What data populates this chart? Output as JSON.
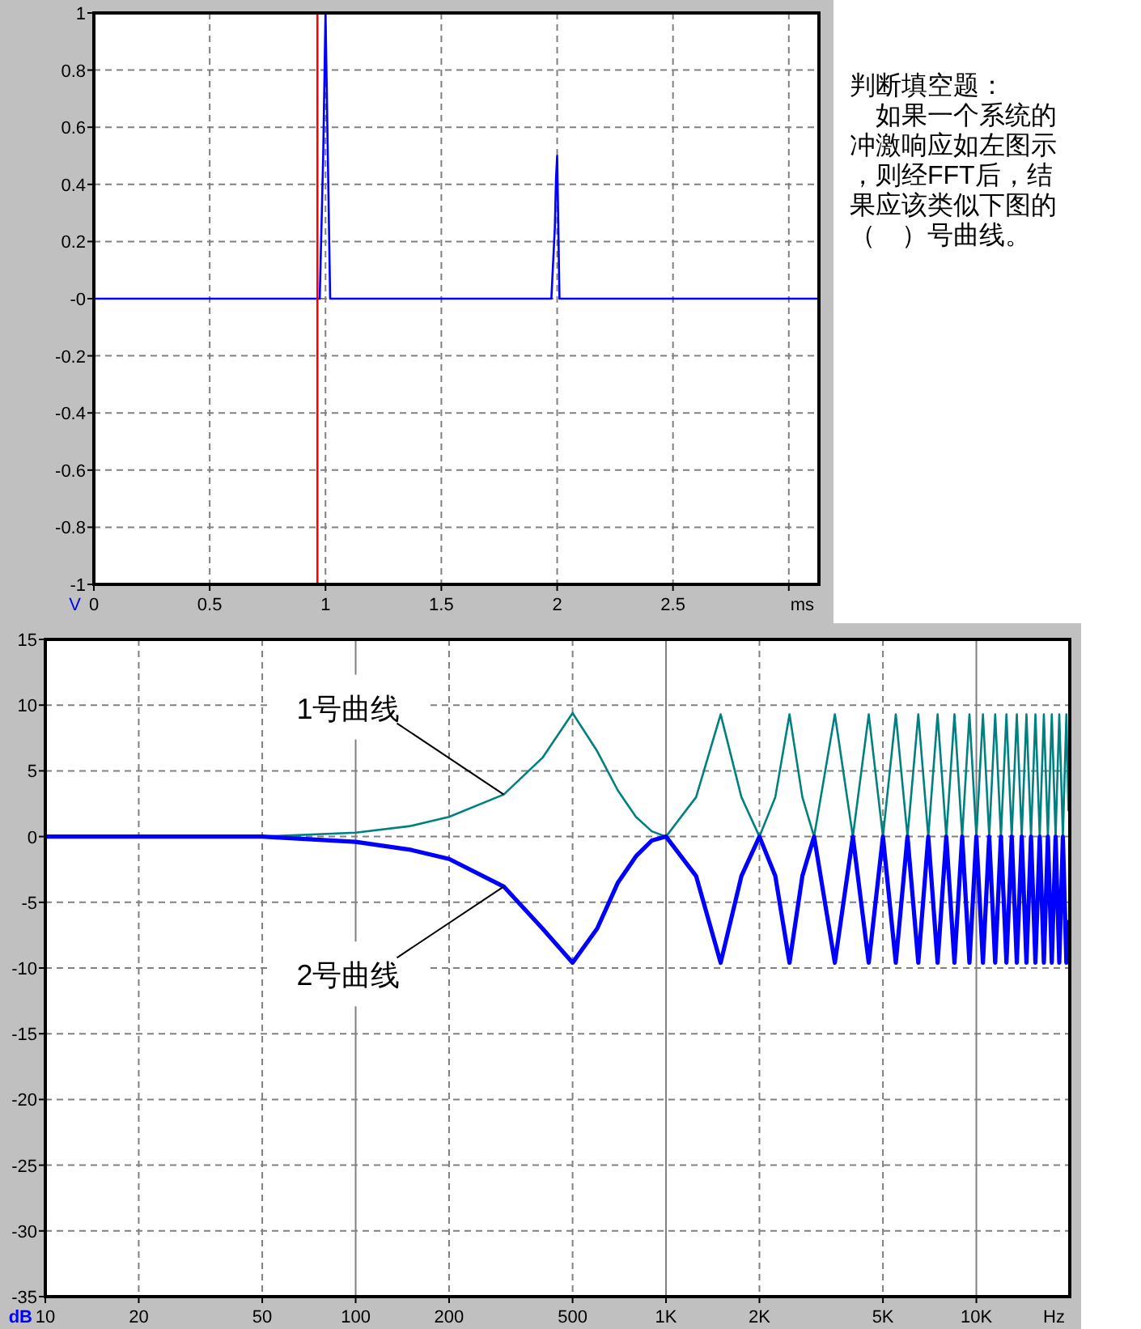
{
  "chart_data": [
    {
      "type": "line",
      "xlabel": "ms",
      "ylabel": "V",
      "xlim": [
        0,
        3.13
      ],
      "ylim": [
        -1,
        1
      ],
      "xticks": [
        0,
        0.5,
        1,
        1.5,
        2,
        2.5,
        {
          "value": 3,
          "label": null
        }
      ],
      "yticks": [
        -1,
        -0.8,
        -0.6,
        -0.4,
        -0.2,
        {
          "value": 0,
          "label": "-0"
        },
        0.2,
        0.4,
        0.6,
        0.8,
        1
      ],
      "grid": true,
      "series": [
        {
          "color": "#0000ff",
          "x": [
            0,
            0.975,
            0.99,
            1.0,
            1.01,
            1.02,
            1.975,
            1.99,
            1.995,
            2.0,
            2.01,
            3.13
          ],
          "values": [
            0,
            0,
            0.5,
            1,
            0.5,
            0,
            0,
            0.25,
            0.42,
            0.5,
            0,
            0
          ]
        }
      ],
      "ref_lines": [
        {
          "axis": "x",
          "value": 0.965,
          "color": "#ff0000"
        }
      ],
      "annotations": [
        "判断填空题：",
        "如果一个系统的冲激响应如左图示，则经FFT后，结果应该类似下图的（　）号曲线。"
      ]
    },
    {
      "type": "line",
      "xlabel": "Hz",
      "ylabel": "dB",
      "log": "x",
      "xlim": [
        10,
        20000
      ],
      "ylim": [
        -35,
        15
      ],
      "xticks": [
        10,
        20,
        50,
        100,
        200,
        500,
        {
          "value": 1000,
          "label": "1K"
        },
        {
          "value": 2000,
          "label": "2K"
        },
        {
          "value": 5000,
          "label": "5K"
        },
        {
          "value": 10000,
          "label": "10K"
        }
      ],
      "yticks": [
        -35,
        -30,
        -25,
        -20,
        -15,
        -10,
        -5,
        0,
        5,
        10,
        15
      ],
      "grid": true,
      "x": [
        10,
        50,
        100,
        150,
        200,
        300,
        400,
        500,
        600,
        700,
        800,
        900,
        1000,
        1250,
        1500,
        1750,
        2000,
        2250,
        2500,
        2750,
        3000,
        3500,
        4000,
        4500,
        5000,
        5500,
        6000,
        6500,
        7000,
        7500,
        8000,
        8500,
        9000,
        9500,
        10000,
        10500,
        11000,
        11500,
        12000,
        12500,
        13000,
        13500,
        14000,
        14500,
        15000,
        15500,
        16000,
        16500,
        17000,
        17500,
        18000,
        18500,
        19000,
        19500,
        19800
      ],
      "series": [
        {
          "color": "#008080",
          "values": [
            0,
            0,
            0.3,
            0.8,
            1.5,
            3.2,
            6,
            9.4,
            6.5,
            3.5,
            1.5,
            0.4,
            0,
            3,
            9.3,
            3,
            0,
            3,
            9.3,
            3,
            0,
            9.3,
            0,
            9.3,
            0,
            9.3,
            0,
            9.3,
            0,
            9.3,
            0,
            9.3,
            0,
            9.3,
            0,
            9.3,
            0,
            9.3,
            0,
            9.3,
            0,
            9.3,
            0,
            9.3,
            0,
            9.3,
            0,
            9.3,
            0,
            9.3,
            0,
            9.3,
            0,
            9.3,
            2
          ]
        },
        {
          "color": "#0000ff",
          "values": [
            0,
            0,
            -0.4,
            -1,
            -1.7,
            -3.8,
            -7,
            -9.6,
            -7,
            -3.5,
            -1.5,
            -0.3,
            0,
            -3,
            -9.6,
            -3,
            0,
            -3,
            -9.6,
            -3,
            0,
            -9.6,
            0,
            -9.6,
            0,
            -9.6,
            0,
            -9.6,
            0,
            -9.6,
            0,
            -9.6,
            0,
            -9.6,
            0,
            -9.6,
            0,
            -9.6,
            0,
            -9.6,
            0,
            -9.6,
            0,
            -9.6,
            0,
            -9.6,
            0,
            -9.6,
            0,
            -9.6,
            0,
            -9.6,
            0,
            -9.6,
            -6.5
          ]
        }
      ],
      "annotations": [
        {
          "text": "1号曲线",
          "x": 300,
          "y": 3.2
        },
        {
          "text": "2号曲线",
          "x": 300,
          "y": -3.8
        }
      ]
    }
  ]
}
